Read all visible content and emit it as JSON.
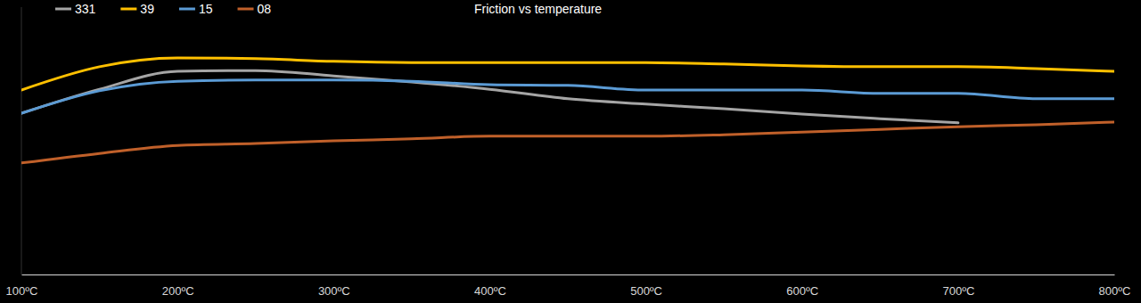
{
  "chart_data": {
    "type": "line",
    "title": "Friction vs temperature",
    "x": [
      100,
      150,
      200,
      250,
      300,
      350,
      400,
      450,
      500,
      550,
      600,
      650,
      700,
      750,
      800
    ],
    "xlim": [
      100,
      800
    ],
    "xticks": [
      {
        "value": 100,
        "label": "100ºC"
      },
      {
        "value": 200,
        "label": "200ºC"
      },
      {
        "value": 300,
        "label": "300ºC"
      },
      {
        "value": 400,
        "label": "400ºC"
      },
      {
        "value": 500,
        "label": "500ºC"
      },
      {
        "value": 600,
        "label": "600ºC"
      },
      {
        "value": 700,
        "label": "700ºC"
      },
      {
        "value": 800,
        "label": "800ºC"
      }
    ],
    "ylim": [
      0,
      0.7
    ],
    "tick_labels": "x",
    "grid": false,
    "legend": "top-left",
    "series": [
      {
        "name": "331",
        "color": "#a5a5a5",
        "values": [
          0.422,
          0.485,
          0.532,
          0.534,
          0.52,
          0.504,
          0.485,
          0.46,
          0.446,
          0.434,
          0.42,
          0.408,
          0.397,
          null,
          null
        ]
      },
      {
        "name": "39",
        "color": "#ffc000",
        "values": [
          0.483,
          0.544,
          0.567,
          0.565,
          0.558,
          0.555,
          0.555,
          0.555,
          0.555,
          0.551,
          0.546,
          0.544,
          0.544,
          0.539,
          0.532
        ]
      },
      {
        "name": "15",
        "color": "#5b9bd5",
        "values": [
          0.422,
          0.481,
          0.506,
          0.509,
          0.509,
          0.506,
          0.497,
          0.495,
          0.483,
          0.483,
          0.483,
          0.474,
          0.474,
          0.46,
          0.46
        ]
      },
      {
        "name": "08",
        "color": "#c0602a",
        "values": [
          0.292,
          0.317,
          0.338,
          0.343,
          0.35,
          0.355,
          0.362,
          0.362,
          0.362,
          0.366,
          0.373,
          0.38,
          0.387,
          0.392,
          0.399
        ]
      }
    ]
  }
}
